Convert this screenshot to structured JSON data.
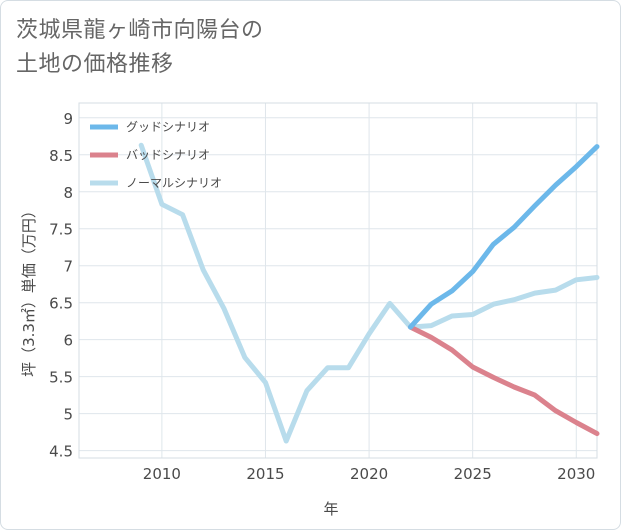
{
  "title_lines": [
    "茨城県龍ヶ崎市向陽台の",
    "土地の価格推移"
  ],
  "chart_data": {
    "type": "line",
    "xlabel": "年",
    "ylabel": "坪（3.3㎡）単価（万円）",
    "xlim": [
      2006,
      2031
    ],
    "ylim": [
      4.4,
      9.2
    ],
    "x_ticks": [
      2010,
      2015,
      2020,
      2025,
      2030
    ],
    "y_ticks": [
      4.5,
      5,
      5.5,
      6,
      6.5,
      7,
      7.5,
      8,
      8.5,
      9
    ],
    "grid": true,
    "legend_position": "top-left",
    "series": [
      {
        "name": "グッドシナリオ",
        "color": "#6cb8ea",
        "x": [
          2022,
          2023,
          2024,
          2025,
          2026,
          2027,
          2028,
          2029,
          2030,
          2031
        ],
        "y": [
          6.17,
          6.48,
          6.66,
          6.92,
          7.29,
          7.52,
          7.81,
          8.09,
          8.34,
          8.61
        ]
      },
      {
        "name": "バッドシナリオ",
        "color": "#db828d",
        "x": [
          2022,
          2023,
          2024,
          2025,
          2026,
          2027,
          2028,
          2029,
          2030,
          2031
        ],
        "y": [
          6.17,
          6.03,
          5.86,
          5.63,
          5.49,
          5.36,
          5.25,
          5.04,
          4.88,
          4.73
        ]
      },
      {
        "name": "ノーマルシナリオ",
        "color": "#b8dcec",
        "x": [
          2009,
          2010,
          2011,
          2012,
          2013,
          2014,
          2015,
          2016,
          2017,
          2018,
          2019,
          2020,
          2021,
          2022,
          2023,
          2024,
          2025,
          2026,
          2027,
          2028,
          2029,
          2030,
          2031
        ],
        "y": [
          8.63,
          7.83,
          7.69,
          6.94,
          6.42,
          5.76,
          5.42,
          4.63,
          5.31,
          5.62,
          5.62,
          6.08,
          6.49,
          6.17,
          6.19,
          6.32,
          6.34,
          6.48,
          6.54,
          6.63,
          6.67,
          6.81,
          6.84
        ]
      }
    ]
  }
}
